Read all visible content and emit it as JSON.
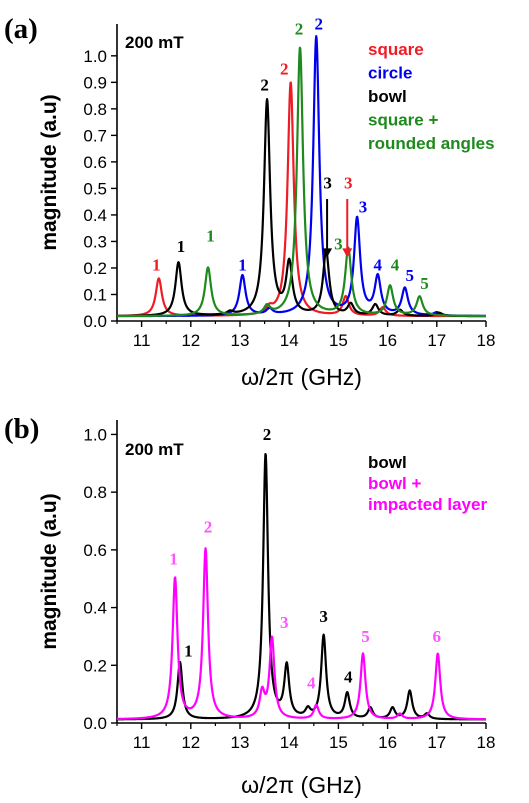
{
  "chart_data": [
    {
      "type": "line",
      "panel_label": "(a)",
      "field_label": "200 mT",
      "xlabel": "ω/2π (GHz)",
      "ylabel": "magnitude (a.u)",
      "xlim": [
        10.5,
        18
      ],
      "ylim": [
        0,
        1.12
      ],
      "x_ticks": [
        "11",
        "12",
        "13",
        "14",
        "15",
        "16",
        "17",
        "18"
      ],
      "y_ticks": [
        "0.0",
        "0.1",
        "0.2",
        "0.3",
        "0.4",
        "0.5",
        "0.6",
        "0.7",
        "0.8",
        "0.9",
        "1.0"
      ],
      "legend_position": "top-right",
      "series": [
        {
          "name": "square",
          "color": "#ee1c25",
          "peaks": [
            [
              11.35,
              0.16
            ],
            [
              12.0,
              0.02
            ],
            [
              13.6,
              0.04
            ],
            [
              14.03,
              0.9
            ],
            [
              15.15,
              0.09
            ],
            [
              15.9,
              0.05
            ]
          ]
        },
        {
          "name": "circle",
          "color": "#0000ee",
          "peaks": [
            [
              13.05,
              0.17
            ],
            [
              13.6,
              0.04
            ],
            [
              14.55,
              1.07
            ],
            [
              15.38,
              0.38
            ],
            [
              15.8,
              0.16
            ],
            [
              16.35,
              0.12
            ],
            [
              17.0,
              0.03
            ]
          ]
        },
        {
          "name": "bowl",
          "color": "#000000",
          "peaks": [
            [
              11.75,
              0.22
            ],
            [
              12.8,
              0.03
            ],
            [
              13.55,
              0.83
            ],
            [
              14.0,
              0.21
            ],
            [
              14.75,
              0.26
            ],
            [
              15.25,
              0.06
            ],
            [
              15.75,
              0.06
            ],
            [
              16.25,
              0.04
            ],
            [
              17.05,
              0.03
            ]
          ]
        },
        {
          "name": "square + rounded angles",
          "color": "#1e8a1e",
          "peaks": [
            [
              12.35,
              0.2
            ],
            [
              13.55,
              0.05
            ],
            [
              14.22,
              1.03
            ],
            [
              15.2,
              0.27
            ],
            [
              16.05,
              0.13
            ],
            [
              16.65,
              0.09
            ]
          ]
        }
      ],
      "annotations": [
        {
          "text": "1",
          "color": "#ee1c25",
          "x": 11.3,
          "y": 0.19
        },
        {
          "text": "1",
          "color": "#000000",
          "x": 11.8,
          "y": 0.26
        },
        {
          "text": "1",
          "color": "#1e8a1e",
          "x": 12.4,
          "y": 0.3
        },
        {
          "text": "1",
          "color": "#0000ee",
          "x": 13.05,
          "y": 0.19
        },
        {
          "text": "2",
          "color": "#000000",
          "x": 13.5,
          "y": 0.87
        },
        {
          "text": "2",
          "color": "#ee1c25",
          "x": 13.9,
          "y": 0.93
        },
        {
          "text": "2",
          "color": "#1e8a1e",
          "x": 14.2,
          "y": 1.08
        },
        {
          "text": "2",
          "color": "#0000ee",
          "x": 14.6,
          "y": 1.1
        },
        {
          "text": "3",
          "color": "#000000",
          "x": 14.78,
          "y": 0.5
        },
        {
          "text": "3",
          "color": "#ee1c25",
          "x": 15.2,
          "y": 0.5
        },
        {
          "text": "3",
          "color": "#1e8a1e",
          "x": 15.0,
          "y": 0.27
        },
        {
          "text": "3",
          "color": "#0000ee",
          "x": 15.5,
          "y": 0.41
        },
        {
          "text": "4",
          "color": "#0000ee",
          "x": 15.8,
          "y": 0.19
        },
        {
          "text": "4",
          "color": "#1e8a1e",
          "x": 16.15,
          "y": 0.19
        },
        {
          "text": "5",
          "color": "#0000ee",
          "x": 16.45,
          "y": 0.15
        },
        {
          "text": "5",
          "color": "#1e8a1e",
          "x": 16.75,
          "y": 0.12
        }
      ]
    },
    {
      "type": "line",
      "panel_label": "(b)",
      "field_label": "200 mT",
      "xlabel": "ω/2π (GHz)",
      "ylabel": "magnitude (a.u)",
      "xlim": [
        10.5,
        18
      ],
      "ylim": [
        0,
        1.05
      ],
      "x_ticks": [
        "11",
        "12",
        "13",
        "14",
        "15",
        "16",
        "17",
        "18"
      ],
      "y_ticks": [
        "0.0",
        "0.2",
        "0.4",
        "0.6",
        "0.8",
        "1.0"
      ],
      "legend_position": "top-right",
      "series": [
        {
          "name": "bowl",
          "color": "#000000",
          "peaks": [
            [
              11.78,
              0.21
            ],
            [
              13.52,
              0.93
            ],
            [
              13.95,
              0.19
            ],
            [
              14.38,
              0.04
            ],
            [
              14.7,
              0.3
            ],
            [
              15.18,
              0.1
            ],
            [
              15.65,
              0.05
            ],
            [
              16.1,
              0.05
            ],
            [
              16.45,
              0.11
            ],
            [
              16.8,
              0.03
            ]
          ]
        },
        {
          "name": "bowl + impacted layer",
          "color": "#ff00ff",
          "peaks": [
            [
              11.68,
              0.5
            ],
            [
              12.3,
              0.6
            ],
            [
              13.45,
              0.1
            ],
            [
              13.65,
              0.29
            ],
            [
              14.55,
              0.06
            ],
            [
              15.5,
              0.24
            ],
            [
              16.25,
              0.03
            ],
            [
              17.02,
              0.24
            ]
          ]
        }
      ],
      "annotations": [
        {
          "text": "1",
          "color": "#ff55ff",
          "x": 11.65,
          "y": 0.55
        },
        {
          "text": "1",
          "color": "#000000",
          "x": 11.95,
          "y": 0.23
        },
        {
          "text": "2",
          "color": "#ff55ff",
          "x": 12.35,
          "y": 0.66
        },
        {
          "text": "2",
          "color": "#000000",
          "x": 13.55,
          "y": 0.98
        },
        {
          "text": "3",
          "color": "#ff55ff",
          "x": 13.9,
          "y": 0.33
        },
        {
          "text": "3",
          "color": "#000000",
          "x": 14.7,
          "y": 0.35
        },
        {
          "text": "4",
          "color": "#ff55ff",
          "x": 14.45,
          "y": 0.12
        },
        {
          "text": "4",
          "color": "#000000",
          "x": 15.2,
          "y": 0.14
        },
        {
          "text": "5",
          "color": "#ff55ff",
          "x": 15.55,
          "y": 0.28
        },
        {
          "text": "6",
          "color": "#ff55ff",
          "x": 17.0,
          "y": 0.28
        }
      ]
    }
  ]
}
